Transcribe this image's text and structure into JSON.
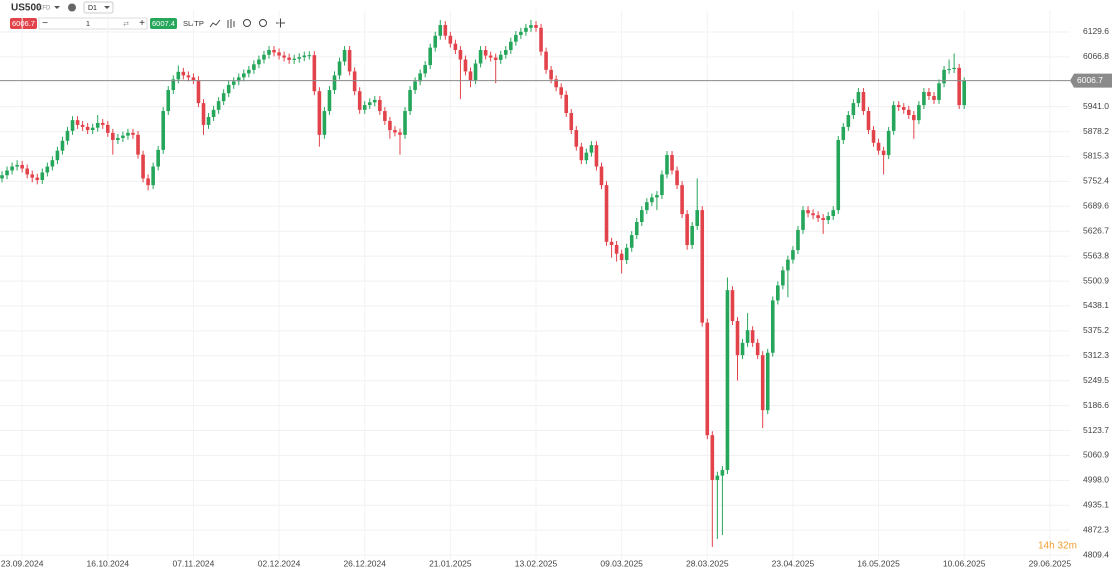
{
  "header": {
    "symbol": "US500",
    "instrument_type": "CFD",
    "timeframe": "D1",
    "bid": "6006.7",
    "volume": "1",
    "ask": "6007.4",
    "sltp": "SL/TP"
  },
  "chart_data": {
    "type": "candlestick",
    "up_color": "#26a65b",
    "down_color": "#e2434b",
    "grid": true,
    "ylim": [
      4797,
      6185
    ],
    "yticks": [
      6129.6,
      6066.8,
      {
        "value": 5941,
        "label": "5941.0"
      },
      5878.2,
      5815.3,
      5752.4,
      5689.6,
      5626.7,
      5563.8,
      5500.9,
      5438.1,
      5375.2,
      5312.3,
      5249.5,
      5186.6,
      5123.7,
      5060.9,
      {
        "value": 4998,
        "label": "4998.0"
      },
      4935.1,
      4872.3,
      4809.4
    ],
    "last_price": 6006.7,
    "countdown": "14h 32m",
    "categories": [
      null,
      null,
      null,
      null,
      "23.09.2024",
      null,
      null,
      null,
      null,
      null,
      null,
      null,
      null,
      null,
      null,
      null,
      null,
      null,
      null,
      null,
      null,
      "16.10.2024",
      null,
      null,
      null,
      null,
      null,
      null,
      null,
      null,
      null,
      null,
      null,
      null,
      null,
      null,
      null,
      null,
      "07.11.2024",
      null,
      null,
      null,
      null,
      null,
      null,
      null,
      null,
      null,
      null,
      null,
      null,
      null,
      null,
      null,
      null,
      "02.12.2024",
      null,
      null,
      null,
      null,
      null,
      null,
      null,
      null,
      null,
      null,
      null,
      null,
      null,
      null,
      null,
      null,
      "26.12.2024",
      null,
      null,
      null,
      null,
      null,
      null,
      null,
      null,
      null,
      null,
      null,
      null,
      null,
      null,
      null,
      null,
      "21.01.2025",
      null,
      null,
      null,
      null,
      null,
      null,
      null,
      null,
      null,
      null,
      null,
      null,
      null,
      null,
      null,
      null,
      "13.02.2025",
      null,
      null,
      null,
      null,
      null,
      null,
      null,
      null,
      null,
      null,
      null,
      null,
      null,
      null,
      null,
      null,
      "09.03.2025",
      null,
      null,
      null,
      null,
      null,
      null,
      null,
      null,
      null,
      null,
      null,
      null,
      null,
      null,
      null,
      null,
      "28.03.2025",
      null,
      null,
      null,
      null,
      null,
      null,
      null,
      null,
      null,
      null,
      null,
      null,
      null,
      null,
      null,
      null,
      "23.04.2025",
      null,
      null,
      null,
      null,
      null,
      null,
      null,
      null,
      null,
      null,
      null,
      null,
      null,
      null,
      null,
      null,
      "16.05.2025",
      null,
      null,
      null,
      null,
      null,
      null,
      null,
      null,
      null,
      null,
      null,
      null,
      null,
      null,
      null,
      null,
      "10.06.2025",
      null,
      null,
      null,
      null,
      null,
      null,
      null,
      null,
      null,
      null,
      null,
      null,
      null,
      null,
      null,
      null,
      "29.06.2025",
      null,
      null,
      null
    ],
    "ohlc": [
      [
        5760,
        5778,
        5750,
        5768
      ],
      [
        5768,
        5790,
        5758,
        5780
      ],
      [
        5780,
        5800,
        5770,
        5790
      ],
      [
        5790,
        5806,
        5780,
        5794
      ],
      [
        5794,
        5804,
        5775,
        5785
      ],
      [
        5785,
        5795,
        5760,
        5770
      ],
      [
        5770,
        5780,
        5750,
        5762
      ],
      [
        5762,
        5772,
        5745,
        5756
      ],
      [
        5756,
        5785,
        5746,
        5775
      ],
      [
        5775,
        5800,
        5765,
        5790
      ],
      [
        5790,
        5816,
        5780,
        5806
      ],
      [
        5806,
        5840,
        5796,
        5830
      ],
      [
        5830,
        5865,
        5820,
        5855
      ],
      [
        5855,
        5890,
        5845,
        5880
      ],
      [
        5880,
        5917,
        5870,
        5907
      ],
      [
        5907,
        5917,
        5885,
        5895
      ],
      [
        5895,
        5905,
        5880,
        5890
      ],
      [
        5890,
        5900,
        5872,
        5882
      ],
      [
        5882,
        5898,
        5872,
        5888
      ],
      [
        5888,
        5920,
        5878,
        5900
      ],
      [
        5900,
        5910,
        5885,
        5895
      ],
      [
        5895,
        5905,
        5865,
        5875
      ],
      [
        5875,
        5885,
        5820,
        5857
      ],
      [
        5857,
        5872,
        5847,
        5862
      ],
      [
        5862,
        5878,
        5852,
        5868
      ],
      [
        5868,
        5885,
        5858,
        5875
      ],
      [
        5875,
        5885,
        5860,
        5870
      ],
      [
        5870,
        5880,
        5810,
        5820
      ],
      [
        5820,
        5830,
        5750,
        5760
      ],
      [
        5760,
        5770,
        5730,
        5743
      ],
      [
        5743,
        5800,
        5733,
        5790
      ],
      [
        5790,
        5842,
        5780,
        5832
      ],
      [
        5832,
        5940,
        5822,
        5930
      ],
      [
        5930,
        5993,
        5920,
        5983
      ],
      [
        5983,
        6020,
        5973,
        6010
      ],
      [
        6010,
        6045,
        6000,
        6029
      ],
      [
        6029,
        6039,
        6010,
        6020
      ],
      [
        6020,
        6030,
        6005,
        6015
      ],
      [
        6015,
        6025,
        5998,
        6008
      ],
      [
        6008,
        6018,
        5940,
        5950
      ],
      [
        5950,
        5960,
        5870,
        5895
      ],
      [
        5895,
        5925,
        5885,
        5915
      ],
      [
        5915,
        5943,
        5905,
        5933
      ],
      [
        5933,
        5965,
        5923,
        5955
      ],
      [
        5955,
        5985,
        5945,
        5975
      ],
      [
        5975,
        6006,
        5965,
        5996
      ],
      [
        5996,
        6015,
        5986,
        6005
      ],
      [
        6005,
        6025,
        5995,
        6015
      ],
      [
        6015,
        6035,
        6005,
        6025
      ],
      [
        6025,
        6044,
        6015,
        6034
      ],
      [
        6034,
        6058,
        6024,
        6048
      ],
      [
        6048,
        6070,
        6038,
        6060
      ],
      [
        6060,
        6082,
        6050,
        6072
      ],
      [
        6072,
        6094,
        6062,
        6084
      ],
      [
        6084,
        6094,
        6068,
        6078
      ],
      [
        6078,
        6088,
        6060,
        6070
      ],
      [
        6070,
        6080,
        6055,
        6065
      ],
      [
        6065,
        6075,
        6049,
        6059
      ],
      [
        6059,
        6072,
        6049,
        6062
      ],
      [
        6062,
        6076,
        6052,
        6066
      ],
      [
        6066,
        6080,
        6056,
        6070
      ],
      [
        6070,
        6081,
        6060,
        6071
      ],
      [
        6071,
        6081,
        5970,
        5980
      ],
      [
        5980,
        5990,
        5840,
        5870
      ],
      [
        5870,
        5940,
        5860,
        5930
      ],
      [
        5930,
        5993,
        5920,
        5983
      ],
      [
        5983,
        6030,
        5973,
        6020
      ],
      [
        6020,
        6065,
        6010,
        6055
      ],
      [
        6055,
        6094,
        6045,
        6084
      ],
      [
        6084,
        6094,
        6020,
        6030
      ],
      [
        6030,
        6040,
        5970,
        5980
      ],
      [
        5980,
        5990,
        5923,
        5933
      ],
      [
        5933,
        5955,
        5923,
        5945
      ],
      [
        5945,
        5962,
        5935,
        5952
      ],
      [
        5952,
        5968,
        5942,
        5958
      ],
      [
        5958,
        5968,
        5920,
        5930
      ],
      [
        5930,
        5940,
        5895,
        5905
      ],
      [
        5905,
        5915,
        5860,
        5882
      ],
      [
        5882,
        5892,
        5866,
        5876
      ],
      [
        5876,
        5886,
        5820,
        5870
      ],
      [
        5870,
        5940,
        5860,
        5930
      ],
      [
        5930,
        5993,
        5920,
        5983
      ],
      [
        5983,
        6015,
        5973,
        6005
      ],
      [
        6005,
        6035,
        5995,
        6025
      ],
      [
        6025,
        6056,
        6015,
        6046
      ],
      [
        6046,
        6100,
        6036,
        6090
      ],
      [
        6090,
        6130,
        6080,
        6120
      ],
      [
        6120,
        6160,
        6110,
        6147
      ],
      [
        6147,
        6157,
        6110,
        6120
      ],
      [
        6120,
        6130,
        6090,
        6100
      ],
      [
        6100,
        6110,
        6074,
        6084
      ],
      [
        6084,
        6094,
        5960,
        6060
      ],
      [
        6060,
        6070,
        6020,
        6030
      ],
      [
        6030,
        6040,
        5990,
        6008
      ],
      [
        6008,
        6060,
        5998,
        6050
      ],
      [
        6050,
        6094,
        6040,
        6084
      ],
      [
        6084,
        6094,
        6060,
        6070
      ],
      [
        6070,
        6080,
        6055,
        6065
      ],
      [
        6065,
        6075,
        6000,
        6059
      ],
      [
        6059,
        6082,
        6049,
        6072
      ],
      [
        6072,
        6094,
        6062,
        6084
      ],
      [
        6084,
        6115,
        6074,
        6105
      ],
      [
        6105,
        6132,
        6095,
        6122
      ],
      [
        6122,
        6140,
        6112,
        6130
      ],
      [
        6130,
        6150,
        6120,
        6140
      ],
      [
        6140,
        6160,
        6130,
        6147
      ],
      [
        6147,
        6157,
        6130,
        6140
      ],
      [
        6140,
        6150,
        6070,
        6080
      ],
      [
        6080,
        6090,
        6024,
        6034
      ],
      [
        6034,
        6044,
        6000,
        6010
      ],
      [
        6010,
        6020,
        5980,
        5990
      ],
      [
        5990,
        6000,
        5961,
        5971
      ],
      [
        5971,
        5981,
        5915,
        5925
      ],
      [
        5925,
        5935,
        5872,
        5882
      ],
      [
        5882,
        5892,
        5830,
        5840
      ],
      [
        5840,
        5850,
        5796,
        5806
      ],
      [
        5806,
        5835,
        5796,
        5825
      ],
      [
        5825,
        5854,
        5815,
        5844
      ],
      [
        5844,
        5854,
        5780,
        5790
      ],
      [
        5790,
        5800,
        5733,
        5743
      ],
      [
        5743,
        5753,
        5590,
        5600
      ],
      [
        5600,
        5610,
        5560,
        5592
      ],
      [
        5592,
        5602,
        5550,
        5570
      ],
      [
        5570,
        5580,
        5520,
        5554
      ],
      [
        5554,
        5595,
        5544,
        5585
      ],
      [
        5585,
        5627,
        5575,
        5617
      ],
      [
        5617,
        5660,
        5607,
        5650
      ],
      [
        5650,
        5690,
        5640,
        5680
      ],
      [
        5680,
        5710,
        5670,
        5700
      ],
      [
        5700,
        5722,
        5690,
        5712
      ],
      [
        5712,
        5728,
        5680,
        5718
      ],
      [
        5718,
        5780,
        5708,
        5770
      ],
      [
        5770,
        5829,
        5760,
        5819
      ],
      [
        5819,
        5829,
        5770,
        5780
      ],
      [
        5780,
        5790,
        5733,
        5743
      ],
      [
        5743,
        5753,
        5660,
        5670
      ],
      [
        5670,
        5680,
        5580,
        5592
      ],
      [
        5592,
        5650,
        5582,
        5640
      ],
      [
        5640,
        5760,
        5630,
        5680
      ],
      [
        5680,
        5690,
        5386,
        5396
      ],
      [
        5396,
        5406,
        5102,
        5112
      ],
      [
        5112,
        5122,
        4830,
        4999
      ],
      [
        4999,
        5020,
        4850,
        5010
      ],
      [
        5010,
        5034,
        4860,
        5024
      ],
      [
        5024,
        5510,
        5014,
        5478
      ],
      [
        5478,
        5488,
        5390,
        5400
      ],
      [
        5400,
        5410,
        5250,
        5314
      ],
      [
        5314,
        5355,
        5304,
        5345
      ],
      [
        5345,
        5420,
        5335,
        5377
      ],
      [
        5377,
        5387,
        5335,
        5345
      ],
      [
        5345,
        5355,
        5304,
        5314
      ],
      [
        5314,
        5324,
        5130,
        5175
      ],
      [
        5175,
        5330,
        5165,
        5320
      ],
      [
        5320,
        5462,
        5310,
        5452
      ],
      [
        5452,
        5500,
        5442,
        5490
      ],
      [
        5490,
        5538,
        5480,
        5528
      ],
      [
        5528,
        5565,
        5460,
        5555
      ],
      [
        5555,
        5589,
        5545,
        5579
      ],
      [
        5579,
        5640,
        5569,
        5630
      ],
      [
        5630,
        5690,
        5620,
        5680
      ],
      [
        5680,
        5690,
        5662,
        5672
      ],
      [
        5672,
        5682,
        5657,
        5667
      ],
      [
        5667,
        5677,
        5650,
        5660
      ],
      [
        5660,
        5670,
        5620,
        5655
      ],
      [
        5655,
        5675,
        5645,
        5665
      ],
      [
        5665,
        5690,
        5655,
        5680
      ],
      [
        5680,
        5867,
        5670,
        5857
      ],
      [
        5857,
        5900,
        5847,
        5890
      ],
      [
        5890,
        5930,
        5880,
        5920
      ],
      [
        5920,
        5960,
        5910,
        5950
      ],
      [
        5950,
        5988,
        5940,
        5978
      ],
      [
        5978,
        5988,
        5920,
        5930
      ],
      [
        5930,
        5940,
        5872,
        5882
      ],
      [
        5882,
        5892,
        5840,
        5850
      ],
      [
        5850,
        5860,
        5820,
        5830
      ],
      [
        5830,
        5840,
        5770,
        5819
      ],
      [
        5819,
        5890,
        5809,
        5880
      ],
      [
        5880,
        5955,
        5870,
        5945
      ],
      [
        5945,
        5955,
        5930,
        5940
      ],
      [
        5940,
        5950,
        5923,
        5933
      ],
      [
        5933,
        5943,
        5910,
        5920
      ],
      [
        5920,
        5930,
        5860,
        5907
      ],
      [
        5907,
        5955,
        5897,
        5945
      ],
      [
        5945,
        5988,
        5935,
        5978
      ],
      [
        5978,
        5988,
        5958,
        5968
      ],
      [
        5968,
        5978,
        5948,
        5958
      ],
      [
        5958,
        6010,
        5948,
        6000
      ],
      [
        6000,
        6044,
        5990,
        6034
      ],
      [
        6034,
        6060,
        6024,
        6036
      ],
      [
        6036,
        6075,
        6026,
        6039
      ],
      [
        6039,
        6049,
        5935,
        5945
      ],
      [
        5945,
        6015,
        5935,
        6006.7
      ],
      null,
      null,
      null,
      null,
      null,
      null,
      null,
      null,
      null,
      null,
      null,
      null,
      null,
      null,
      null,
      null,
      null,
      null,
      null,
      null
    ]
  }
}
